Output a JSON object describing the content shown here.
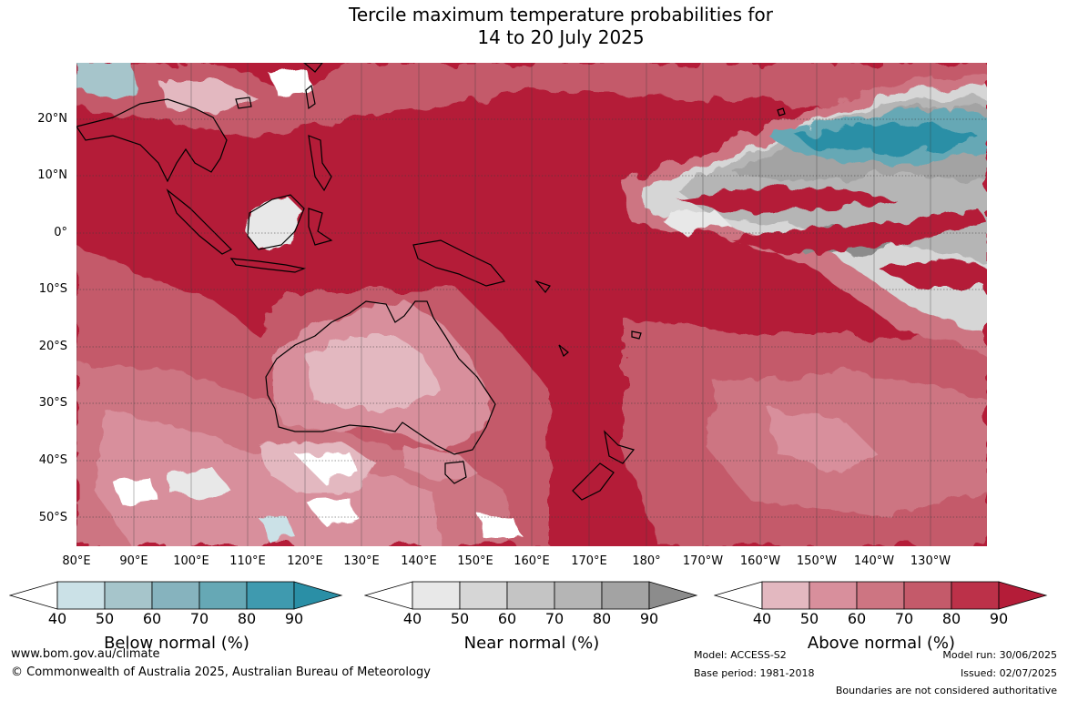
{
  "title": {
    "line1": "Tercile maximum temperature probabilities for",
    "line2": "14 to 20 July 2025"
  },
  "map": {
    "lat_labels": [
      "20°N",
      "10°N",
      "0°",
      "10°S",
      "20°S",
      "30°S",
      "40°S",
      "50°S"
    ],
    "lon_labels": [
      "80°E",
      "90°E",
      "100°E",
      "110°E",
      "120°E",
      "130°E",
      "140°E",
      "150°E",
      "160°E",
      "170°E",
      "180°",
      "170°W",
      "160°W",
      "150°W",
      "140°W",
      "130°W"
    ],
    "dominant_category": "Above normal",
    "colors": {
      "above_90": "#b41c38",
      "ocean_grid": "#333333",
      "coast": "#000000"
    }
  },
  "legend": {
    "below": {
      "label": "Below normal (%)",
      "ticks": [
        "40",
        "50",
        "60",
        "70",
        "80",
        "90"
      ],
      "colors": [
        "#ffffff",
        "#cbe1e7",
        "#a6c5cb",
        "#86b3be",
        "#66a8b5",
        "#3f9aaf",
        "#2a8fa6"
      ]
    },
    "near": {
      "label": "Near normal (%)",
      "ticks": [
        "40",
        "50",
        "60",
        "70",
        "80",
        "90"
      ],
      "colors": [
        "#ffffff",
        "#e8e8e8",
        "#d6d6d6",
        "#c4c4c4",
        "#b5b5b5",
        "#a3a3a3",
        "#8c8c8c"
      ]
    },
    "above": {
      "label": "Above normal (%)",
      "ticks": [
        "40",
        "50",
        "60",
        "70",
        "80",
        "90"
      ],
      "colors": [
        "#ffffff",
        "#e3b8c0",
        "#d88f9c",
        "#cd7582",
        "#c45a6a",
        "#bc3149",
        "#b41c38"
      ]
    }
  },
  "footer": {
    "website": "www.bom.gov.au/climate",
    "copyright": "© Commonwealth of Australia 2025, Australian Bureau of Meteorology",
    "model": "Model: ACCESS-S2",
    "base_period": "Base period: 1981-2018",
    "model_run": "Model run: 30/06/2025",
    "issued": "Issued: 02/07/2025",
    "disclaimer": "Boundaries are not considered authoritative"
  }
}
